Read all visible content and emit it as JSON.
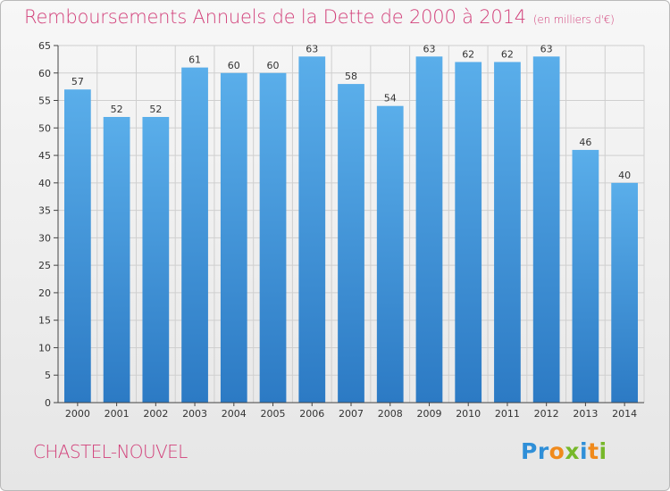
{
  "chart_data": {
    "type": "bar",
    "title": "Remboursements Annuels de la Dette de 2000 à 2014",
    "unit": "(en milliers d'€)",
    "categories": [
      "2000",
      "2001",
      "2002",
      "2003",
      "2004",
      "2005",
      "2006",
      "2007",
      "2008",
      "2009",
      "2010",
      "2011",
      "2012",
      "2013",
      "2014"
    ],
    "values": [
      57,
      52,
      52,
      61,
      60,
      60,
      63,
      58,
      54,
      63,
      62,
      62,
      63,
      46,
      40
    ],
    "ylim": [
      0,
      65
    ],
    "yticks": [
      0,
      5,
      10,
      15,
      20,
      25,
      30,
      35,
      40,
      45,
      50,
      55,
      60,
      65
    ],
    "xlabel": "",
    "ylabel": "",
    "grid": true,
    "colors": {
      "bar_top": "#5aaeea",
      "bar_bottom": "#2c7ac4",
      "title": "#d2407a",
      "grid": "#cfcfcf"
    }
  },
  "footer": {
    "commune": "CHASTEL-NOUVEL",
    "logo_letters": [
      {
        "ch": "P",
        "color": "#2f8fd8"
      },
      {
        "ch": "r",
        "color": "#2f8fd8"
      },
      {
        "ch": "o",
        "color": "#f08a1c"
      },
      {
        "ch": "x",
        "color": "#77b82a"
      },
      {
        "ch": "i",
        "color": "#2f8fd8"
      },
      {
        "ch": "t",
        "color": "#f08a1c"
      },
      {
        "ch": "i",
        "color": "#77b82a"
      }
    ]
  }
}
